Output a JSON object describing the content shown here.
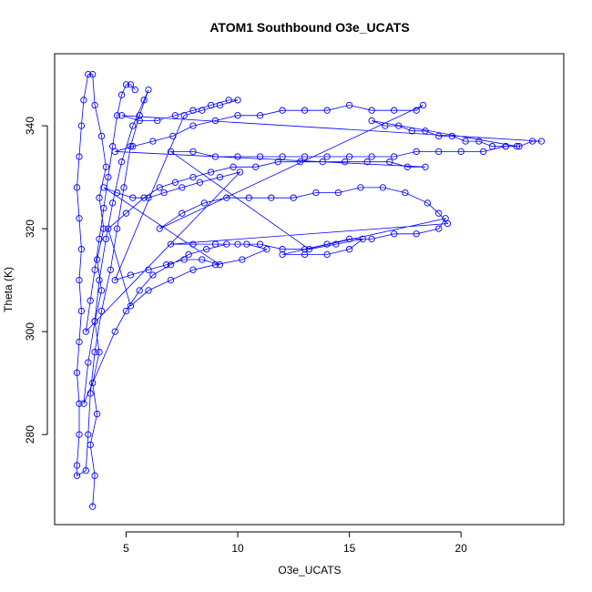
{
  "chart_data": {
    "type": "scatter",
    "title": "ATOM1 Southbound O3e_UCATS",
    "xlabel": "O3e_UCATS",
    "ylabel": "Theta (K)",
    "xlim": [
      1.8,
      24.6
    ],
    "ylim": [
      262.5,
      354
    ],
    "x_ticks": [
      5,
      10,
      15,
      20
    ],
    "y_ticks": [
      280,
      300,
      320,
      340
    ],
    "grid": false,
    "legend": "none",
    "marker": "open-circle",
    "connected_points": true,
    "series_color": "#0000ff",
    "series": [
      {
        "points": [
          [
            3.5,
            266
          ],
          [
            3.6,
            272
          ],
          [
            3.4,
            278
          ],
          [
            3.7,
            284
          ],
          [
            3.5,
            290
          ],
          [
            3.8,
            296
          ],
          [
            3.6,
            302
          ],
          [
            3.9,
            308
          ],
          [
            3.7,
            314
          ],
          [
            4.0,
            320
          ],
          [
            3.8,
            326
          ],
          [
            4.1,
            332
          ],
          [
            3.9,
            338
          ],
          [
            3.6,
            344
          ],
          [
            3.5,
            350
          ],
          [
            3.3,
            350
          ],
          [
            3.1,
            345
          ],
          [
            3.0,
            340
          ],
          [
            2.9,
            334
          ],
          [
            2.8,
            328
          ],
          [
            2.9,
            322
          ],
          [
            3.0,
            316
          ],
          [
            2.9,
            310
          ],
          [
            3.0,
            304
          ],
          [
            2.9,
            298
          ],
          [
            2.8,
            292
          ],
          [
            2.9,
            286
          ],
          [
            2.9,
            280
          ],
          [
            2.8,
            274
          ],
          [
            2.8,
            272
          ],
          [
            3.2,
            273
          ],
          [
            3.3,
            280
          ],
          [
            3.4,
            288
          ],
          [
            3.6,
            296
          ],
          [
            3.9,
            304
          ],
          [
            4.3,
            312
          ],
          [
            4.6,
            320
          ],
          [
            4.9,
            328
          ],
          [
            5.2,
            336
          ],
          [
            5.6,
            342
          ],
          [
            6.0,
            347
          ],
          [
            5.8,
            345
          ],
          [
            5.3,
            340
          ],
          [
            4.8,
            333
          ],
          [
            4.4,
            325
          ],
          [
            4.1,
            318
          ],
          [
            3.8,
            310
          ],
          [
            3.6,
            302
          ],
          [
            3.3,
            294
          ],
          [
            3.1,
            286
          ],
          [
            4.5,
            300
          ],
          [
            5.0,
            304
          ],
          [
            5.6,
            308
          ],
          [
            6.2,
            311
          ],
          [
            7.0,
            313
          ],
          [
            7.8,
            315
          ],
          [
            8.6,
            316
          ],
          [
            9.5,
            317
          ],
          [
            10.4,
            317
          ],
          [
            11.3,
            316
          ],
          [
            10.2,
            314
          ],
          [
            9.0,
            313
          ],
          [
            8.0,
            312
          ],
          [
            7.0,
            310
          ],
          [
            6.0,
            308
          ],
          [
            5.2,
            305
          ],
          [
            4.2,
            320
          ],
          [
            5.0,
            323
          ],
          [
            5.8,
            326
          ],
          [
            6.5,
            328
          ],
          [
            7.2,
            329
          ],
          [
            8.0,
            330
          ],
          [
            8.8,
            331
          ],
          [
            9.8,
            332
          ],
          [
            10.8,
            332
          ],
          [
            11.8,
            333
          ],
          [
            12.8,
            333
          ],
          [
            13.8,
            333
          ],
          [
            14.8,
            333
          ],
          [
            15.8,
            333
          ],
          [
            16.8,
            333
          ],
          [
            17.6,
            332
          ],
          [
            18.4,
            332
          ],
          [
            4.5,
            335
          ],
          [
            5.3,
            336
          ],
          [
            6.2,
            337
          ],
          [
            7.1,
            338
          ],
          [
            8.0,
            340
          ],
          [
            9.0,
            341
          ],
          [
            10.0,
            342
          ],
          [
            11.0,
            342
          ],
          [
            12.0,
            343
          ],
          [
            13.0,
            343
          ],
          [
            14.0,
            343
          ],
          [
            15.0,
            344
          ],
          [
            16.0,
            343
          ],
          [
            17.0,
            343
          ],
          [
            18.0,
            343
          ],
          [
            18.3,
            344
          ],
          [
            6.5,
            320
          ],
          [
            7.5,
            323
          ],
          [
            8.5,
            325
          ],
          [
            9.5,
            326
          ],
          [
            10.5,
            326
          ],
          [
            11.5,
            326
          ],
          [
            12.5,
            326
          ],
          [
            13.5,
            327
          ],
          [
            14.5,
            327
          ],
          [
            15.5,
            328
          ],
          [
            16.5,
            328
          ],
          [
            17.5,
            327
          ],
          [
            18.5,
            325
          ],
          [
            19.0,
            323
          ],
          [
            19.4,
            321
          ],
          [
            7.0,
            317
          ],
          [
            8.0,
            317
          ],
          [
            9.0,
            317
          ],
          [
            10.0,
            317
          ],
          [
            11.0,
            317
          ],
          [
            12.0,
            316
          ],
          [
            13.0,
            316
          ],
          [
            14.0,
            317
          ],
          [
            15.0,
            318
          ],
          [
            16.0,
            318
          ],
          [
            17.0,
            319
          ],
          [
            18.0,
            319
          ],
          [
            19.0,
            320
          ],
          [
            19.3,
            322
          ],
          [
            12.0,
            315
          ],
          [
            13.0,
            315
          ],
          [
            14.0,
            315
          ],
          [
            15.0,
            316
          ],
          [
            15.6,
            318
          ],
          [
            14.4,
            317
          ],
          [
            13.2,
            316
          ],
          [
            7.0,
            335
          ],
          [
            8.0,
            335
          ],
          [
            9.0,
            334
          ],
          [
            10.0,
            334
          ],
          [
            11.0,
            334
          ],
          [
            12.0,
            334
          ],
          [
            13.0,
            334
          ],
          [
            14.0,
            334
          ],
          [
            15.0,
            334
          ],
          [
            16.0,
            334
          ],
          [
            17.0,
            334
          ],
          [
            18.0,
            335
          ],
          [
            19.0,
            335
          ],
          [
            20.0,
            335
          ],
          [
            21.0,
            335
          ],
          [
            22.0,
            336
          ],
          [
            22.5,
            336
          ],
          [
            16.0,
            341
          ],
          [
            16.6,
            340
          ],
          [
            17.2,
            340
          ],
          [
            17.8,
            339
          ],
          [
            18.4,
            339
          ],
          [
            19.0,
            338
          ],
          [
            19.6,
            338
          ],
          [
            20.2,
            337
          ],
          [
            20.8,
            337
          ],
          [
            21.4,
            336
          ],
          [
            22.0,
            336
          ],
          [
            22.6,
            336
          ],
          [
            23.2,
            337
          ],
          [
            23.6,
            337
          ],
          [
            4.8,
            342
          ],
          [
            5.6,
            341
          ],
          [
            6.4,
            341
          ],
          [
            7.2,
            342
          ],
          [
            8.0,
            343
          ],
          [
            8.8,
            344
          ],
          [
            9.6,
            345
          ],
          [
            10.0,
            345
          ],
          [
            9.2,
            344
          ],
          [
            8.4,
            343
          ],
          [
            7.6,
            342
          ],
          [
            4.5,
            310
          ],
          [
            5.2,
            311
          ],
          [
            6.0,
            312
          ],
          [
            6.8,
            313
          ],
          [
            7.6,
            314
          ],
          [
            8.4,
            314
          ],
          [
            9.2,
            313
          ],
          [
            4.0,
            328
          ],
          [
            4.6,
            327
          ],
          [
            5.3,
            326
          ],
          [
            6.0,
            326
          ],
          [
            6.7,
            327
          ],
          [
            7.5,
            328
          ],
          [
            8.3,
            329
          ],
          [
            9.2,
            330
          ],
          [
            10.1,
            331
          ],
          [
            3.2,
            300
          ],
          [
            3.4,
            306
          ],
          [
            3.6,
            312
          ],
          [
            3.8,
            318
          ],
          [
            4.0,
            324
          ],
          [
            4.2,
            330
          ],
          [
            4.4,
            336
          ],
          [
            4.6,
            342
          ],
          [
            4.8,
            346
          ],
          [
            5.0,
            348
          ],
          [
            5.2,
            348
          ],
          [
            5.4,
            347
          ]
        ]
      }
    ]
  }
}
